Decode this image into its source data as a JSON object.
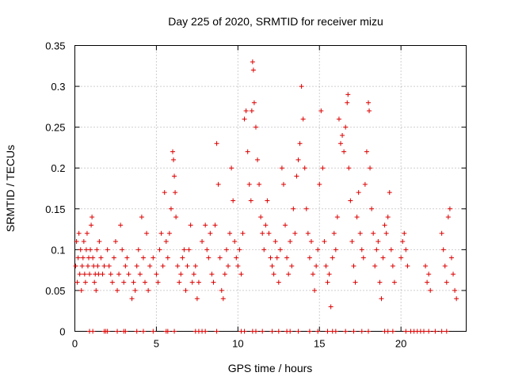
{
  "chart_data": {
    "type": "scatter",
    "title": "Day 225 of 2020, SRMTID for receiver mizu",
    "xlabel": "GPS time / hours",
    "ylabel": "SRMTID / TECUs",
    "xlim": [
      0,
      24
    ],
    "ylim": [
      0,
      0.35
    ],
    "xticks": [
      0,
      5,
      10,
      15,
      20
    ],
    "xtick_labels": [
      "0",
      "5",
      "10",
      "15",
      "20"
    ],
    "yticks": [
      0,
      0.05,
      0.1,
      0.15,
      0.2,
      0.25,
      0.3,
      0.35
    ],
    "ytick_labels": [
      "0",
      "0.05",
      "0.1",
      "0.15",
      "0.2",
      "0.25",
      "0.3",
      "0.35"
    ],
    "grid": true,
    "marker": "+",
    "color": "#dd0000",
    "series": [
      {
        "name": "SRMTID",
        "points": [
          [
            0.05,
            0.08
          ],
          [
            0.1,
            0.11
          ],
          [
            0.15,
            0.06
          ],
          [
            0.2,
            0.09
          ],
          [
            0.25,
            0.12
          ],
          [
            0.3,
            0.07
          ],
          [
            0.35,
            0.1
          ],
          [
            0.4,
            0.05
          ],
          [
            0.45,
            0.08
          ],
          [
            0.5,
            0.09
          ],
          [
            0.55,
            0.11
          ],
          [
            0.6,
            0.07
          ],
          [
            0.65,
            0.06
          ],
          [
            0.7,
            0.1
          ],
          [
            0.75,
            0.12
          ],
          [
            0.8,
            0.08
          ],
          [
            0.85,
            0.09
          ],
          [
            0.9,
            0.07
          ],
          [
            0.95,
            0.1
          ],
          [
            1.0,
            0.13
          ],
          [
            1.05,
            0.14
          ],
          [
            1.1,
            0.09
          ],
          [
            1.15,
            0.08
          ],
          [
            1.2,
            0.06
          ],
          [
            1.25,
            0.07
          ],
          [
            1.3,
            0.05
          ],
          [
            1.35,
            0.1
          ],
          [
            1.4,
            0.08
          ],
          [
            1.45,
            0.07
          ],
          [
            1.5,
            0.11
          ],
          [
            1.6,
            0.09
          ],
          [
            1.7,
            0.07
          ],
          [
            1.8,
            0.08
          ],
          [
            2.0,
            0.1
          ],
          [
            2.1,
            0.08
          ],
          [
            2.2,
            0.07
          ],
          [
            2.3,
            0.06
          ],
          [
            2.4,
            0.09
          ],
          [
            2.5,
            0.11
          ],
          [
            2.6,
            0.05
          ],
          [
            2.7,
            0.07
          ],
          [
            2.8,
            0.13
          ],
          [
            2.9,
            0.1
          ],
          [
            3.0,
            0.06
          ],
          [
            3.1,
            0.08
          ],
          [
            3.2,
            0.09
          ],
          [
            3.3,
            0.07
          ],
          [
            3.5,
            0.04
          ],
          [
            3.6,
            0.06
          ],
          [
            3.7,
            0.05
          ],
          [
            3.8,
            0.08
          ],
          [
            3.9,
            0.1
          ],
          [
            4.0,
            0.07
          ],
          [
            4.1,
            0.14
          ],
          [
            4.2,
            0.09
          ],
          [
            4.3,
            0.06
          ],
          [
            4.4,
            0.12
          ],
          [
            4.5,
            0.05
          ],
          [
            4.6,
            0.08
          ],
          [
            4.8,
            0.09
          ],
          [
            5.0,
            0.07
          ],
          [
            5.1,
            0.06
          ],
          [
            5.2,
            0.1
          ],
          [
            5.3,
            0.12
          ],
          [
            5.4,
            0.08
          ],
          [
            5.5,
            0.17
          ],
          [
            5.6,
            0.11
          ],
          [
            5.7,
            0.09
          ],
          [
            5.8,
            0.12
          ],
          [
            5.9,
            0.15
          ],
          [
            6.0,
            0.22
          ],
          [
            6.05,
            0.21
          ],
          [
            6.1,
            0.19
          ],
          [
            6.15,
            0.17
          ],
          [
            6.2,
            0.14
          ],
          [
            6.3,
            0.08
          ],
          [
            6.4,
            0.06
          ],
          [
            6.5,
            0.07
          ],
          [
            6.6,
            0.09
          ],
          [
            6.7,
            0.1
          ],
          [
            6.8,
            0.05
          ],
          [
            6.9,
            0.08
          ],
          [
            7.0,
            0.1
          ],
          [
            7.1,
            0.13
          ],
          [
            7.2,
            0.06
          ],
          [
            7.3,
            0.07
          ],
          [
            7.4,
            0.08
          ],
          [
            7.5,
            0.04
          ],
          [
            7.6,
            0.06
          ],
          [
            7.8,
            0.11
          ],
          [
            8.0,
            0.13
          ],
          [
            8.1,
            0.1
          ],
          [
            8.2,
            0.09
          ],
          [
            8.3,
            0.12
          ],
          [
            8.4,
            0.07
          ],
          [
            8.5,
            0.06
          ],
          [
            8.6,
            0.13
          ],
          [
            8.7,
            0.23
          ],
          [
            8.8,
            0.18
          ],
          [
            8.9,
            0.09
          ],
          [
            9.0,
            0.05
          ],
          [
            9.1,
            0.04
          ],
          [
            9.2,
            0.07
          ],
          [
            9.3,
            0.1
          ],
          [
            9.4,
            0.08
          ],
          [
            9.5,
            0.12
          ],
          [
            9.6,
            0.2
          ],
          [
            9.7,
            0.16
          ],
          [
            9.8,
            0.11
          ],
          [
            9.9,
            0.09
          ],
          [
            10.0,
            0.08
          ],
          [
            10.1,
            0.1
          ],
          [
            10.2,
            0.07
          ],
          [
            10.3,
            0.12
          ],
          [
            10.4,
            0.26
          ],
          [
            10.5,
            0.27
          ],
          [
            10.6,
            0.22
          ],
          [
            10.7,
            0.18
          ],
          [
            10.8,
            0.16
          ],
          [
            10.85,
            0.27
          ],
          [
            10.9,
            0.33
          ],
          [
            10.95,
            0.32
          ],
          [
            11.0,
            0.28
          ],
          [
            11.1,
            0.25
          ],
          [
            11.2,
            0.21
          ],
          [
            11.3,
            0.18
          ],
          [
            11.4,
            0.14
          ],
          [
            11.5,
            0.12
          ],
          [
            11.6,
            0.1
          ],
          [
            11.7,
            0.13
          ],
          [
            11.8,
            0.16
          ],
          [
            11.9,
            0.12
          ],
          [
            12.0,
            0.09
          ],
          [
            12.1,
            0.08
          ],
          [
            12.2,
            0.07
          ],
          [
            12.3,
            0.11
          ],
          [
            12.4,
            0.09
          ],
          [
            12.5,
            0.06
          ],
          [
            12.6,
            0.1
          ],
          [
            12.7,
            0.2
          ],
          [
            12.8,
            0.18
          ],
          [
            12.9,
            0.13
          ],
          [
            13.0,
            0.09
          ],
          [
            13.1,
            0.07
          ],
          [
            13.2,
            0.11
          ],
          [
            13.3,
            0.08
          ],
          [
            13.4,
            0.15
          ],
          [
            13.5,
            0.12
          ],
          [
            13.6,
            0.19
          ],
          [
            13.7,
            0.21
          ],
          [
            13.8,
            0.23
          ],
          [
            13.9,
            0.3
          ],
          [
            14.0,
            0.26
          ],
          [
            14.1,
            0.2
          ],
          [
            14.2,
            0.15
          ],
          [
            14.3,
            0.12
          ],
          [
            14.4,
            0.09
          ],
          [
            14.5,
            0.11
          ],
          [
            14.6,
            0.07
          ],
          [
            14.7,
            0.05
          ],
          [
            14.8,
            0.08
          ],
          [
            14.9,
            0.1
          ],
          [
            15.0,
            0.18
          ],
          [
            15.1,
            0.27
          ],
          [
            15.2,
            0.2
          ],
          [
            15.3,
            0.11
          ],
          [
            15.4,
            0.08
          ],
          [
            15.5,
            0.06
          ],
          [
            15.6,
            0.07
          ],
          [
            15.7,
            0.03
          ],
          [
            15.8,
            0.09
          ],
          [
            15.9,
            0.12
          ],
          [
            16.0,
            0.1
          ],
          [
            16.1,
            0.14
          ],
          [
            16.2,
            0.26
          ],
          [
            16.3,
            0.23
          ],
          [
            16.4,
            0.24
          ],
          [
            16.5,
            0.22
          ],
          [
            16.6,
            0.25
          ],
          [
            16.7,
            0.28
          ],
          [
            16.75,
            0.29
          ],
          [
            16.8,
            0.2
          ],
          [
            16.9,
            0.16
          ],
          [
            17.0,
            0.11
          ],
          [
            17.1,
            0.08
          ],
          [
            17.2,
            0.06
          ],
          [
            17.3,
            0.14
          ],
          [
            17.4,
            0.17
          ],
          [
            17.5,
            0.12
          ],
          [
            17.6,
            0.1
          ],
          [
            17.7,
            0.09
          ],
          [
            17.8,
            0.18
          ],
          [
            17.9,
            0.22
          ],
          [
            18.0,
            0.28
          ],
          [
            18.05,
            0.27
          ],
          [
            18.1,
            0.2
          ],
          [
            18.2,
            0.15
          ],
          [
            18.3,
            0.12
          ],
          [
            18.4,
            0.08
          ],
          [
            18.5,
            0.1
          ],
          [
            18.6,
            0.11
          ],
          [
            18.7,
            0.06
          ],
          [
            18.8,
            0.04
          ],
          [
            18.9,
            0.09
          ],
          [
            19.0,
            0.13
          ],
          [
            19.1,
            0.12
          ],
          [
            19.2,
            0.14
          ],
          [
            19.3,
            0.17
          ],
          [
            19.4,
            0.1
          ],
          [
            19.5,
            0.08
          ],
          [
            19.6,
            0.06
          ],
          [
            20.0,
            0.09
          ],
          [
            20.1,
            0.11
          ],
          [
            20.2,
            0.12
          ],
          [
            20.3,
            0.1
          ],
          [
            20.4,
            0.08
          ],
          [
            21.5,
            0.08
          ],
          [
            21.6,
            0.06
          ],
          [
            21.7,
            0.07
          ],
          [
            21.8,
            0.05
          ],
          [
            22.5,
            0.12
          ],
          [
            22.6,
            0.1
          ],
          [
            22.7,
            0.08
          ],
          [
            22.8,
            0.06
          ],
          [
            22.9,
            0.14
          ],
          [
            23.0,
            0.15
          ],
          [
            23.1,
            0.09
          ],
          [
            23.2,
            0.07
          ],
          [
            23.3,
            0.05
          ],
          [
            23.4,
            0.04
          ],
          [
            0.9,
            0
          ],
          [
            1.1,
            0
          ],
          [
            1.8,
            0
          ],
          [
            1.9,
            0
          ],
          [
            2.0,
            0
          ],
          [
            2.6,
            0
          ],
          [
            3.0,
            0
          ],
          [
            3.1,
            0
          ],
          [
            3.8,
            0
          ],
          [
            4.2,
            0
          ],
          [
            4.8,
            0
          ],
          [
            5.6,
            0
          ],
          [
            5.7,
            0
          ],
          [
            6.1,
            0
          ],
          [
            7.4,
            0
          ],
          [
            7.6,
            0
          ],
          [
            7.8,
            0
          ],
          [
            8.0,
            0
          ],
          [
            8.7,
            0
          ],
          [
            10.2,
            0
          ],
          [
            10.4,
            0
          ],
          [
            10.9,
            0
          ],
          [
            11.1,
            0
          ],
          [
            11.5,
            0
          ],
          [
            12.1,
            0
          ],
          [
            12.5,
            0
          ],
          [
            13.0,
            0
          ],
          [
            13.2,
            0
          ],
          [
            13.7,
            0
          ],
          [
            14.4,
            0
          ],
          [
            14.9,
            0
          ],
          [
            15.5,
            0
          ],
          [
            15.8,
            0
          ],
          [
            16.0,
            0
          ],
          [
            16.6,
            0
          ],
          [
            17.1,
            0
          ],
          [
            17.6,
            0
          ],
          [
            18.0,
            0
          ],
          [
            19.0,
            0
          ],
          [
            19.2,
            0
          ],
          [
            19.5,
            0
          ],
          [
            20.3,
            0
          ],
          [
            20.6,
            0
          ],
          [
            20.8,
            0
          ],
          [
            21.0,
            0
          ],
          [
            21.2,
            0
          ],
          [
            21.4,
            0
          ],
          [
            21.7,
            0
          ],
          [
            22.1,
            0
          ],
          [
            22.5,
            0
          ],
          [
            22.8,
            0
          ]
        ]
      }
    ]
  }
}
